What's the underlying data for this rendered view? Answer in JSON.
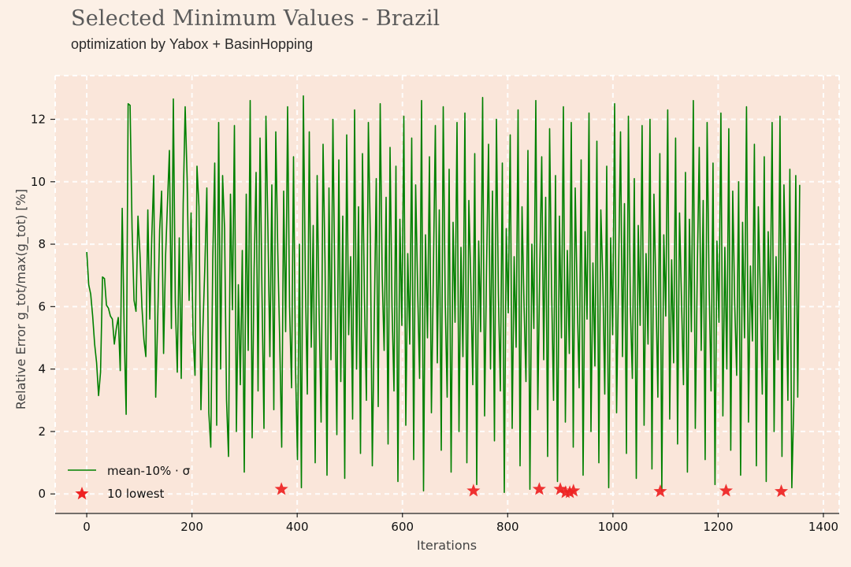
{
  "header": {
    "title": "Selected Minimum Values - Brazil",
    "subtitle": "optimization by Yabox + BasinHopping"
  },
  "colors": {
    "background": "#fcf0e6",
    "plot_background": "#fae6da",
    "grid": "#ffffff",
    "series": "#008000",
    "markers": "#ee2222"
  },
  "chart_data": {
    "type": "line",
    "title": "Selected Minimum Values - Brazil",
    "subtitle": "optimization by Yabox + BasinHopping",
    "xlabel": "Iterations",
    "ylabel": "Relative Error g_tot/max(g_tot) [%]",
    "xlim": [
      -60,
      1430
    ],
    "ylim": [
      -0.6,
      13.4
    ],
    "xticks": [
      0,
      200,
      400,
      600,
      800,
      1000,
      1200,
      1400
    ],
    "yticks": [
      0,
      2,
      4,
      6,
      8,
      10,
      12
    ],
    "grid": true,
    "legend_position": "lower-left",
    "series": [
      {
        "name": "mean-10% · σ",
        "style": "line",
        "description_of_values": "dense oscillating series, one value per iteration from 0 to ~1355, values between ~0.05 and ~12.7 %",
        "x_range": [
          0,
          1355
        ],
        "y_range": [
          0.05,
          12.7
        ],
        "values": [
          7.75,
          6.7,
          6.4,
          5.7,
          4.8,
          4.2,
          3.15,
          3.9,
          6.95,
          6.9,
          6.05,
          5.95,
          5.7,
          5.6,
          4.8,
          5.3,
          5.65,
          3.95,
          9.15,
          5.2,
          2.55,
          12.5,
          12.45,
          8.5,
          6.2,
          5.85,
          8.9,
          7.7,
          6.0,
          4.95,
          4.4,
          9.1,
          5.6,
          8.2,
          10.2,
          3.1,
          5.55,
          8.45,
          9.7,
          4.5,
          7.6,
          9.35,
          11.0,
          5.3,
          12.65,
          6.1,
          3.9,
          8.2,
          3.7,
          9.3,
          12.4,
          10.1,
          6.2,
          9.0,
          5.1,
          3.8,
          10.5,
          9.2,
          2.7,
          5.3,
          7.3,
          9.8,
          2.6,
          1.5,
          7.5,
          10.6,
          2.2,
          11.9,
          4.0,
          10.2,
          8.5,
          3.0,
          1.2,
          9.6,
          5.9,
          11.8,
          2.0,
          6.7,
          3.5,
          7.8,
          0.7,
          9.6,
          4.6,
          12.6,
          1.8,
          7.2,
          10.3,
          3.3,
          11.4,
          6.4,
          2.1,
          12.1,
          8.5,
          4.4,
          9.9,
          2.7,
          11.6,
          7.8,
          4.9,
          1.5,
          9.7,
          5.2,
          12.4,
          6.0,
          3.4,
          10.8,
          4.1,
          1.1,
          8.0,
          0.2,
          12.75,
          6.9,
          3.2,
          11.6,
          4.7,
          8.6,
          1.0,
          10.2,
          5.8,
          2.3,
          11.2,
          7.4,
          0.6,
          9.8,
          4.3,
          12.0,
          6.5,
          1.9,
          10.7,
          3.6,
          8.9,
          0.5,
          11.5,
          5.1,
          7.6,
          2.4,
          12.3,
          4.0,
          9.2,
          1.3,
          10.9,
          6.3,
          3.0,
          11.9,
          8.2,
          0.9,
          5.6,
          10.1,
          2.8,
          12.5,
          7.0,
          4.6,
          9.5,
          1.6,
          11.1,
          6.0,
          3.3,
          10.5,
          0.4,
          8.8,
          5.4,
          12.1,
          2.2,
          7.7,
          4.8,
          11.4,
          1.1,
          9.9,
          6.6,
          3.7,
          12.6,
          0.1,
          8.3,
          5.0,
          10.8,
          2.6,
          7.1,
          11.8,
          4.2,
          9.1,
          1.4,
          12.4,
          6.2,
          3.1,
          10.4,
          0.7,
          8.7,
          5.5,
          11.9,
          2.0,
          7.9,
          4.4,
          12.2,
          1.0,
          9.4,
          6.8,
          3.5,
          10.9,
          0.3,
          8.1,
          5.2,
          12.7,
          2.5,
          7.3,
          11.2,
          4.0,
          9.7,
          1.7,
          12.0,
          6.4,
          3.3,
          10.6,
          0.05,
          8.5,
          5.8,
          11.5,
          2.1,
          7.6,
          4.7,
          12.3,
          0.9,
          9.2,
          6.1,
          3.6,
          11.0,
          0.15,
          8.0,
          5.3,
          12.6,
          2.7,
          7.2,
          10.8,
          4.3,
          9.5,
          1.2,
          11.7,
          6.6,
          3.0,
          10.2,
          0.4,
          8.9,
          5.0,
          12.4,
          2.3,
          7.8,
          4.5,
          11.9,
          1.5,
          9.8,
          6.3,
          3.4,
          10.7,
          0.6,
          8.4,
          5.6,
          12.2,
          2.0,
          7.4,
          4.1,
          11.3,
          1.0,
          9.1,
          6.9,
          3.2,
          10.5,
          0.2,
          8.2,
          5.1,
          12.5,
          2.6,
          7.0,
          11.6,
          4.4,
          9.3,
          1.3,
          12.1,
          6.0,
          3.7,
          10.1,
          0.5,
          8.6,
          5.4,
          11.8,
          2.2,
          7.7,
          4.8,
          12.0,
          0.8,
          9.6,
          6.5,
          3.1,
          10.9,
          0.1,
          8.3,
          5.7,
          12.3,
          2.4,
          7.5,
          4.2,
          11.4,
          1.6,
          9.0,
          6.2,
          3.5,
          10.3,
          0.7,
          8.8,
          5.2,
          12.6,
          2.1,
          7.1,
          11.1,
          4.6,
          9.4,
          1.1,
          11.9,
          6.7,
          3.3,
          10.6,
          0.3,
          8.1,
          5.5,
          12.2,
          2.5,
          7.9,
          4.0,
          11.7,
          1.4,
          9.7,
          6.1,
          3.8,
          10.0,
          0.6,
          8.7,
          5.0,
          12.4,
          2.3,
          7.3,
          4.9,
          11.2,
          0.9,
          9.2,
          6.4,
          3.2,
          10.8,
          0.4,
          8.4,
          5.6,
          11.9,
          2.0,
          7.6,
          4.3,
          12.1,
          1.2,
          9.9,
          6.8,
          3.0,
          10.4,
          0.2,
          2.9,
          10.2,
          3.1,
          9.9
        ]
      },
      {
        "name": "10 lowest",
        "style": "star-markers",
        "x": [
          370,
          735,
          860,
          900,
          910,
          918,
          925,
          1090,
          1215,
          1320
        ],
        "y": [
          0.15,
          0.1,
          0.15,
          0.15,
          0.05,
          0.05,
          0.1,
          0.08,
          0.1,
          0.08
        ]
      }
    ]
  },
  "legend": {
    "items": [
      {
        "label": "mean-10% · σ",
        "symbol": "line"
      },
      {
        "label": "10 lowest",
        "symbol": "star"
      }
    ]
  }
}
